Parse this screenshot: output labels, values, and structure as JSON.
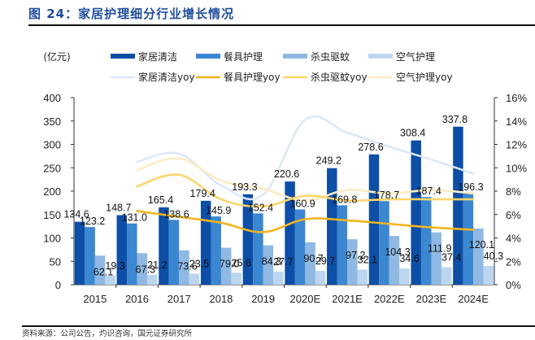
{
  "title": "图 24：家居护理细分行业增长情况",
  "source": "资料来源：公司公告，灼识咨询，国元证券研究所",
  "chart_data": {
    "type": "bar",
    "title": "图 24：家居护理细分行业增长情况",
    "ylabel": "(亿元)",
    "xlabel": "",
    "categories": [
      "2015",
      "2016",
      "2017",
      "2018",
      "2019",
      "2020E",
      "2021E",
      "2022E",
      "2023E",
      "2024E"
    ],
    "ylim": [
      0,
      400
    ],
    "yticks": [
      0,
      50,
      100,
      150,
      200,
      250,
      300,
      350,
      400
    ],
    "y2lim": [
      0,
      16
    ],
    "y2ticks": [
      "0%",
      "2%",
      "4%",
      "6%",
      "8%",
      "10%",
      "12%",
      "14%",
      "16%"
    ],
    "grid": false,
    "legend_position": "top",
    "series": [
      {
        "name": "家居清洁",
        "type": "bar",
        "color": "#0d4ea6",
        "values": [
          134.6,
          148.7,
          165.4,
          179.4,
          193.3,
          220.6,
          249.2,
          278.6,
          308.4,
          337.8
        ]
      },
      {
        "name": "餐具护理",
        "type": "bar",
        "color": "#3b87d1",
        "values": [
          123.2,
          131.0,
          138.6,
          145.9,
          152.4,
          160.9,
          169.8,
          178.7,
          187.4,
          196.3
        ]
      },
      {
        "name": "杀虫驱蚊",
        "type": "bar",
        "color": "#8fb9e3",
        "values": [
          62.1,
          67.3,
          73.6,
          79.0,
          84.3,
          90.7,
          97.2,
          104.3,
          111.9,
          120.1
        ]
      },
      {
        "name": "空气护理",
        "type": "bar",
        "color": "#bcd6f0",
        "values": [
          19.3,
          21.2,
          23.5,
          25.6,
          27.7,
          29.7,
          32.1,
          34.6,
          37.4,
          40.3
        ]
      },
      {
        "name": "家居清洁yoy",
        "type": "line",
        "axis": "right",
        "color": "#dce8f6",
        "values": [
          null,
          10.5,
          11.2,
          8.5,
          7.7,
          14.1,
          13.0,
          11.8,
          10.7,
          9.5
        ]
      },
      {
        "name": "餐具护理yoy",
        "type": "line",
        "axis": "right",
        "color": "#f2b51e",
        "values": [
          null,
          6.3,
          5.8,
          5.3,
          4.5,
          5.6,
          5.5,
          5.2,
          4.9,
          4.7
        ]
      },
      {
        "name": "杀虫驱蚊yoy",
        "type": "line",
        "axis": "right",
        "color": "#fad56b",
        "values": [
          null,
          8.4,
          9.4,
          7.3,
          6.7,
          7.6,
          7.2,
          7.3,
          7.3,
          7.3
        ]
      },
      {
        "name": "空气护理yoy",
        "type": "line",
        "axis": "right",
        "color": "#fdebc4",
        "values": [
          null,
          9.8,
          10.8,
          8.9,
          8.2,
          7.2,
          8.1,
          7.8,
          8.1,
          7.8
        ]
      }
    ],
    "data_labels": {
      "家居清洁": [
        "134.6",
        "148.7",
        "165.4",
        "179.4",
        "193.3",
        "220.6",
        "249.2",
        "278.6",
        "308.4",
        "337.8"
      ],
      "餐具护理": [
        "123.2",
        "131.0",
        "138.6",
        "145.9",
        "152.4",
        "160.9",
        "169.8",
        "178.7",
        "187.4",
        "196.3"
      ],
      "杀虫驱蚊": [
        "62.1",
        "67.3",
        "73.6",
        "79.0",
        "84.3",
        "90.7",
        "97.2",
        "104.3",
        "111.9",
        "120.1"
      ],
      "空气护理": [
        "19.3",
        "21.2",
        "23.5",
        "25.6",
        "27.7",
        "29.7",
        "32.1",
        "34.6",
        "37.4",
        "40.3"
      ]
    }
  }
}
